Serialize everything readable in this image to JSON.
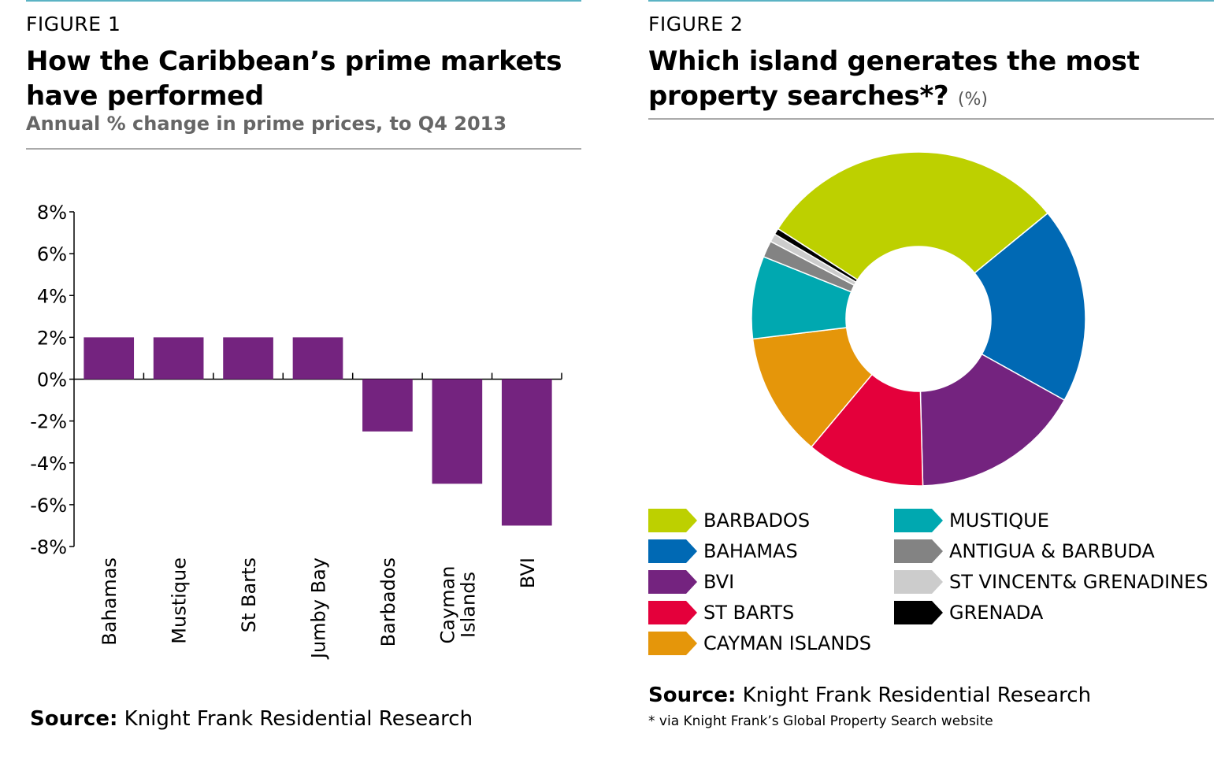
{
  "figure1": {
    "label": "FIGURE 1",
    "title_line1": "How the Caribbean’s prime markets",
    "title_line2": "have performed",
    "subtitle": "Annual % change in prime prices, to Q4 2013",
    "source_bold": "Source:",
    "source_text": " Knight Frank Residential Research"
  },
  "figure2": {
    "label": "FIGURE 2",
    "title_line1": "Which island generates the most",
    "title_line2": "property searches*?",
    "title_unit": "(%)",
    "source_bold": "Source:",
    "source_text": " Knight Frank Residential Research",
    "footnote": "* via Knight Frank’s Global Property Search website"
  },
  "chart_data": [
    {
      "type": "bar",
      "title": "How the Caribbean’s prime markets have performed",
      "subtitle": "Annual % change in prime prices, to Q4 2013",
      "categories": [
        "Bahamas",
        "Mustique",
        "St Barts",
        "Jumby Bay",
        "Barbados",
        "Cayman Islands",
        "BVI"
      ],
      "category_lines": [
        [
          "Bahamas"
        ],
        [
          "Mustique"
        ],
        [
          "St Barts"
        ],
        [
          "Jumby Bay"
        ],
        [
          "Barbados"
        ],
        [
          "Cayman",
          "Islands"
        ],
        [
          "BVI"
        ]
      ],
      "values": [
        2.0,
        2.0,
        2.0,
        2.0,
        -2.5,
        -5.0,
        -7.0
      ],
      "ylim": [
        -8,
        8
      ],
      "yticks": [
        8,
        6,
        4,
        2,
        0,
        -2,
        -4,
        -6,
        -8
      ],
      "ytick_labels": [
        "8%",
        "6%",
        "4%",
        "2%",
        "0%",
        "-2%",
        "-4%",
        "-6%",
        "-8%"
      ],
      "color": "#74237f",
      "grid": false
    },
    {
      "type": "pie",
      "donut": true,
      "title": "Which island generates the most property searches*? (%)",
      "labels": [
        "BARBADOS",
        "BAHAMAS",
        "BVI",
        "ST BARTS",
        "CAYMAN ISLANDS",
        "MUSTIQUE",
        "ANTIGUA & BARBUDA",
        "ST VINCENT& GRENADINES",
        "GRENADA"
      ],
      "values": [
        30.0,
        19.0,
        16.5,
        11.5,
        12.0,
        8.0,
        1.6,
        0.8,
        0.6
      ],
      "colors": [
        "#bdd000",
        "#0069b4",
        "#74237f",
        "#e4003b",
        "#e5960a",
        "#00a8b0",
        "#838383",
        "#cccccc",
        "#000000"
      ],
      "legend": "bottom, two columns"
    }
  ]
}
